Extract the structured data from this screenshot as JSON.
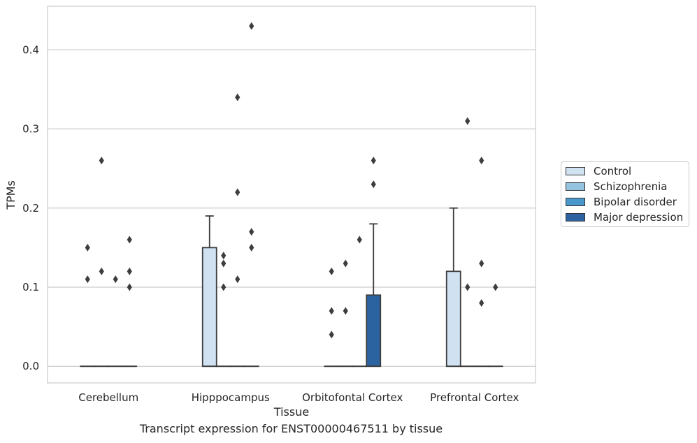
{
  "chart_data": {
    "type": "box",
    "caption": "Transcript expression for ENST00000467511 by tissue",
    "xlabel": "Tissue",
    "ylabel": "TPMs",
    "ylim": [
      -0.021,
      0.455
    ],
    "yticks": [
      "0.0",
      "0.1",
      "0.2",
      "0.3",
      "0.4"
    ],
    "grid": true,
    "legend_position": "right",
    "categories": [
      "Cerebellum",
      "Hipppocampus",
      "Orbitofontal Cortex",
      "Prefrontal Cortex"
    ],
    "series": [
      {
        "name": "Control",
        "color": "#d0e1f2"
      },
      {
        "name": "Schizophrenia",
        "color": "#94c4df"
      },
      {
        "name": "Bipolar disorder",
        "color": "#4a98c9"
      },
      {
        "name": "Major depression",
        "color": "#2b63a0"
      }
    ],
    "boxes": [
      {
        "category": "Cerebellum",
        "series": "Control",
        "q1": 0,
        "median": 0,
        "q3": 0,
        "whisker_low": 0,
        "whisker_high": 0,
        "outliers": [
          0.11,
          0.15
        ]
      },
      {
        "category": "Cerebellum",
        "series": "Schizophrenia",
        "q1": 0,
        "median": 0,
        "q3": 0,
        "whisker_low": 0,
        "whisker_high": 0,
        "outliers": [
          0.12,
          0.26
        ]
      },
      {
        "category": "Cerebellum",
        "series": "Bipolar disorder",
        "q1": 0,
        "median": 0,
        "q3": 0,
        "whisker_low": 0,
        "whisker_high": 0,
        "outliers": [
          0.11
        ]
      },
      {
        "category": "Cerebellum",
        "series": "Major depression",
        "q1": 0,
        "median": 0,
        "q3": 0,
        "whisker_low": 0,
        "whisker_high": 0,
        "outliers": [
          0.1,
          0.12,
          0.16
        ]
      },
      {
        "category": "Hipppocampus",
        "series": "Control",
        "q1": 0,
        "median": 0,
        "q3": 0.15,
        "whisker_low": 0,
        "whisker_high": 0.19,
        "outliers": []
      },
      {
        "category": "Hipppocampus",
        "series": "Schizophrenia",
        "q1": 0,
        "median": 0,
        "q3": 0,
        "whisker_low": 0,
        "whisker_high": 0,
        "outliers": [
          0.1,
          0.13,
          0.14
        ]
      },
      {
        "category": "Hipppocampus",
        "series": "Bipolar disorder",
        "q1": 0,
        "median": 0,
        "q3": 0,
        "whisker_low": 0,
        "whisker_high": 0,
        "outliers": [
          0.11,
          0.22,
          0.34
        ]
      },
      {
        "category": "Hipppocampus",
        "series": "Major depression",
        "q1": 0,
        "median": 0,
        "q3": 0,
        "whisker_low": 0,
        "whisker_high": 0,
        "outliers": [
          0.15,
          0.17,
          0.43
        ]
      },
      {
        "category": "Orbitofontal Cortex",
        "series": "Control",
        "q1": 0,
        "median": 0,
        "q3": 0,
        "whisker_low": 0,
        "whisker_high": 0,
        "outliers": [
          0.04,
          0.07,
          0.12
        ]
      },
      {
        "category": "Orbitofontal Cortex",
        "series": "Schizophrenia",
        "q1": 0,
        "median": 0,
        "q3": 0,
        "whisker_low": 0,
        "whisker_high": 0,
        "outliers": [
          0.07,
          0.13
        ]
      },
      {
        "category": "Orbitofontal Cortex",
        "series": "Bipolar disorder",
        "q1": 0,
        "median": 0,
        "q3": 0,
        "whisker_low": 0,
        "whisker_high": 0,
        "outliers": [
          0.16
        ]
      },
      {
        "category": "Orbitofontal Cortex",
        "series": "Major depression",
        "q1": 0,
        "median": 0,
        "q3": 0.09,
        "whisker_low": 0,
        "whisker_high": 0.18,
        "outliers": [
          0.23,
          0.26
        ]
      },
      {
        "category": "Prefrontal Cortex",
        "series": "Control",
        "q1": 0,
        "median": 0,
        "q3": 0.12,
        "whisker_low": 0,
        "whisker_high": 0.2,
        "outliers": []
      },
      {
        "category": "Prefrontal Cortex",
        "series": "Schizophrenia",
        "q1": 0,
        "median": 0,
        "q3": 0,
        "whisker_low": 0,
        "whisker_high": 0,
        "outliers": [
          0.1,
          0.31
        ]
      },
      {
        "category": "Prefrontal Cortex",
        "series": "Bipolar disorder",
        "q1": 0,
        "median": 0,
        "q3": 0,
        "whisker_low": 0,
        "whisker_high": 0,
        "outliers": [
          0.08,
          0.13,
          0.26
        ]
      },
      {
        "category": "Prefrontal Cortex",
        "series": "Major depression",
        "q1": 0,
        "median": 0,
        "q3": 0,
        "whisker_low": 0,
        "whisker_high": 0,
        "outliers": [
          0.1
        ]
      }
    ]
  }
}
